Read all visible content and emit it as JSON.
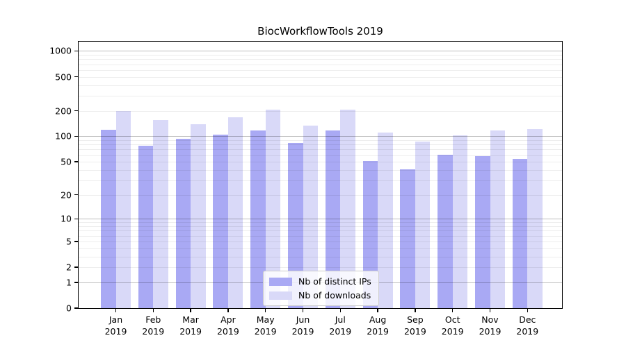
{
  "title": "BiocWorkflowTools 2019",
  "chart_data": {
    "type": "bar",
    "title": "BiocWorkflowTools 2019",
    "xlabel": "",
    "ylabel": "",
    "y_scale": "log1p",
    "ylim": [
      0,
      1285
    ],
    "y_ticks": [
      1000,
      500,
      200,
      100,
      50,
      20,
      10,
      5,
      2,
      1,
      0
    ],
    "grid": true,
    "legend_position": "bottom-center",
    "categories": [
      "Jan",
      "Feb",
      "Mar",
      "Apr",
      "May",
      "Jun",
      "Jul",
      "Aug",
      "Sep",
      "Oct",
      "Nov",
      "Dec"
    ],
    "year": "2019",
    "series": [
      {
        "name": "Nb of distinct IPs",
        "color": "#a9a9f4",
        "values": [
          119,
          78,
          94,
          105,
          117,
          84,
          118,
          51,
          41,
          61,
          58,
          54
        ]
      },
      {
        "name": "Nb of downloads",
        "color": "#d9d9f8",
        "values": [
          197,
          155,
          138,
          167,
          205,
          134,
          205,
          111,
          86,
          103,
          118,
          122
        ]
      }
    ]
  }
}
